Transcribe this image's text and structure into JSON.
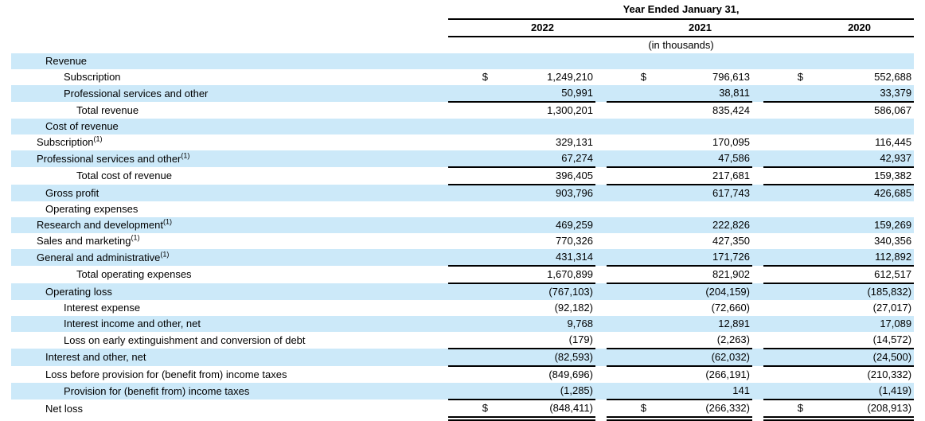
{
  "colors": {
    "stripe": "#cce9f9",
    "rule": "#000000",
    "text": "#000000",
    "background": "#ffffff"
  },
  "table": {
    "period_header": "Year Ended January 31,",
    "units_note": "(in thousands)",
    "currency_symbol": "$",
    "footnote_marker": "(1)",
    "years": [
      "2022",
      "2021",
      "2020"
    ],
    "rows": [
      {
        "label": "Revenue",
        "sup": false,
        "indent": 1,
        "shaded": true,
        "dollar": false,
        "underline": "none",
        "values": [
          "",
          "",
          ""
        ]
      },
      {
        "label": "Subscription",
        "sup": false,
        "indent": 2,
        "shaded": false,
        "dollar": true,
        "underline": "none",
        "values": [
          "1,249,210",
          "796,613",
          "552,688"
        ]
      },
      {
        "label": "Professional services and other",
        "sup": false,
        "indent": 2,
        "shaded": true,
        "dollar": false,
        "underline": "single",
        "values": [
          "50,991",
          "38,811",
          "33,379"
        ]
      },
      {
        "label": "Total revenue",
        "sup": false,
        "indent": 3,
        "shaded": false,
        "dollar": false,
        "underline": "none",
        "values": [
          "1,300,201",
          "835,424",
          "586,067"
        ]
      },
      {
        "label": "Cost of revenue",
        "sup": false,
        "indent": 1,
        "shaded": true,
        "dollar": false,
        "underline": "none",
        "values": [
          "",
          "",
          ""
        ]
      },
      {
        "label": "Subscription",
        "sup": true,
        "indent": 0,
        "shaded": false,
        "dollar": false,
        "underline": "none",
        "values": [
          "329,131",
          "170,095",
          "116,445"
        ]
      },
      {
        "label": "Professional services and other",
        "sup": true,
        "indent": 0,
        "shaded": true,
        "dollar": false,
        "underline": "single",
        "values": [
          "67,274",
          "47,586",
          "42,937"
        ]
      },
      {
        "label": "Total cost of revenue",
        "sup": false,
        "indent": 3,
        "shaded": false,
        "dollar": false,
        "underline": "single",
        "values": [
          "396,405",
          "217,681",
          "159,382"
        ]
      },
      {
        "label": "Gross profit",
        "sup": false,
        "indent": 1,
        "shaded": true,
        "dollar": false,
        "underline": "none",
        "values": [
          "903,796",
          "617,743",
          "426,685"
        ]
      },
      {
        "label": "Operating expenses",
        "sup": false,
        "indent": 1,
        "shaded": false,
        "dollar": false,
        "underline": "none",
        "values": [
          "",
          "",
          ""
        ]
      },
      {
        "label": "Research and development",
        "sup": true,
        "indent": 0,
        "shaded": true,
        "dollar": false,
        "underline": "none",
        "values": [
          "469,259",
          "222,826",
          "159,269"
        ]
      },
      {
        "label": "Sales and marketing",
        "sup": true,
        "indent": 0,
        "shaded": false,
        "dollar": false,
        "underline": "none",
        "values": [
          "770,326",
          "427,350",
          "340,356"
        ]
      },
      {
        "label": "General and administrative",
        "sup": true,
        "indent": 0,
        "shaded": true,
        "dollar": false,
        "underline": "single",
        "values": [
          "431,314",
          "171,726",
          "112,892"
        ]
      },
      {
        "label": "Total operating expenses",
        "sup": false,
        "indent": 3,
        "shaded": false,
        "dollar": false,
        "underline": "single",
        "values": [
          "1,670,899",
          "821,902",
          "612,517"
        ]
      },
      {
        "label": "Operating loss",
        "sup": false,
        "indent": 1,
        "shaded": true,
        "dollar": false,
        "underline": "none",
        "values": [
          "(767,103)",
          "(204,159)",
          "(185,832)"
        ]
      },
      {
        "label": "Interest expense",
        "sup": false,
        "indent": 2,
        "shaded": false,
        "dollar": false,
        "underline": "none",
        "values": [
          "(92,182)",
          "(72,660)",
          "(27,017)"
        ]
      },
      {
        "label": "Interest income and other, net",
        "sup": false,
        "indent": 2,
        "shaded": true,
        "dollar": false,
        "underline": "none",
        "values": [
          "9,768",
          "12,891",
          "17,089"
        ]
      },
      {
        "label": "Loss on early extinguishment and conversion of debt",
        "sup": false,
        "indent": 2,
        "shaded": false,
        "dollar": false,
        "underline": "single",
        "values": [
          "(179)",
          "(2,263)",
          "(14,572)"
        ]
      },
      {
        "label": "Interest and other, net",
        "sup": false,
        "indent": 1,
        "shaded": true,
        "dollar": false,
        "underline": "single",
        "values": [
          "(82,593)",
          "(62,032)",
          "(24,500)"
        ]
      },
      {
        "label": "Loss before provision for (benefit from) income taxes",
        "sup": false,
        "indent": 1,
        "shaded": false,
        "dollar": false,
        "underline": "none",
        "values": [
          "(849,696)",
          "(266,191)",
          "(210,332)"
        ]
      },
      {
        "label": "Provision for (benefit from) income taxes",
        "sup": false,
        "indent": 2,
        "shaded": true,
        "dollar": false,
        "underline": "single",
        "values": [
          "(1,285)",
          "141",
          "(1,419)"
        ]
      },
      {
        "label": "Net loss",
        "sup": false,
        "indent": 1,
        "shaded": false,
        "dollar": true,
        "underline": "double",
        "values": [
          "(848,411)",
          "(266,332)",
          "(208,913)"
        ]
      }
    ]
  }
}
